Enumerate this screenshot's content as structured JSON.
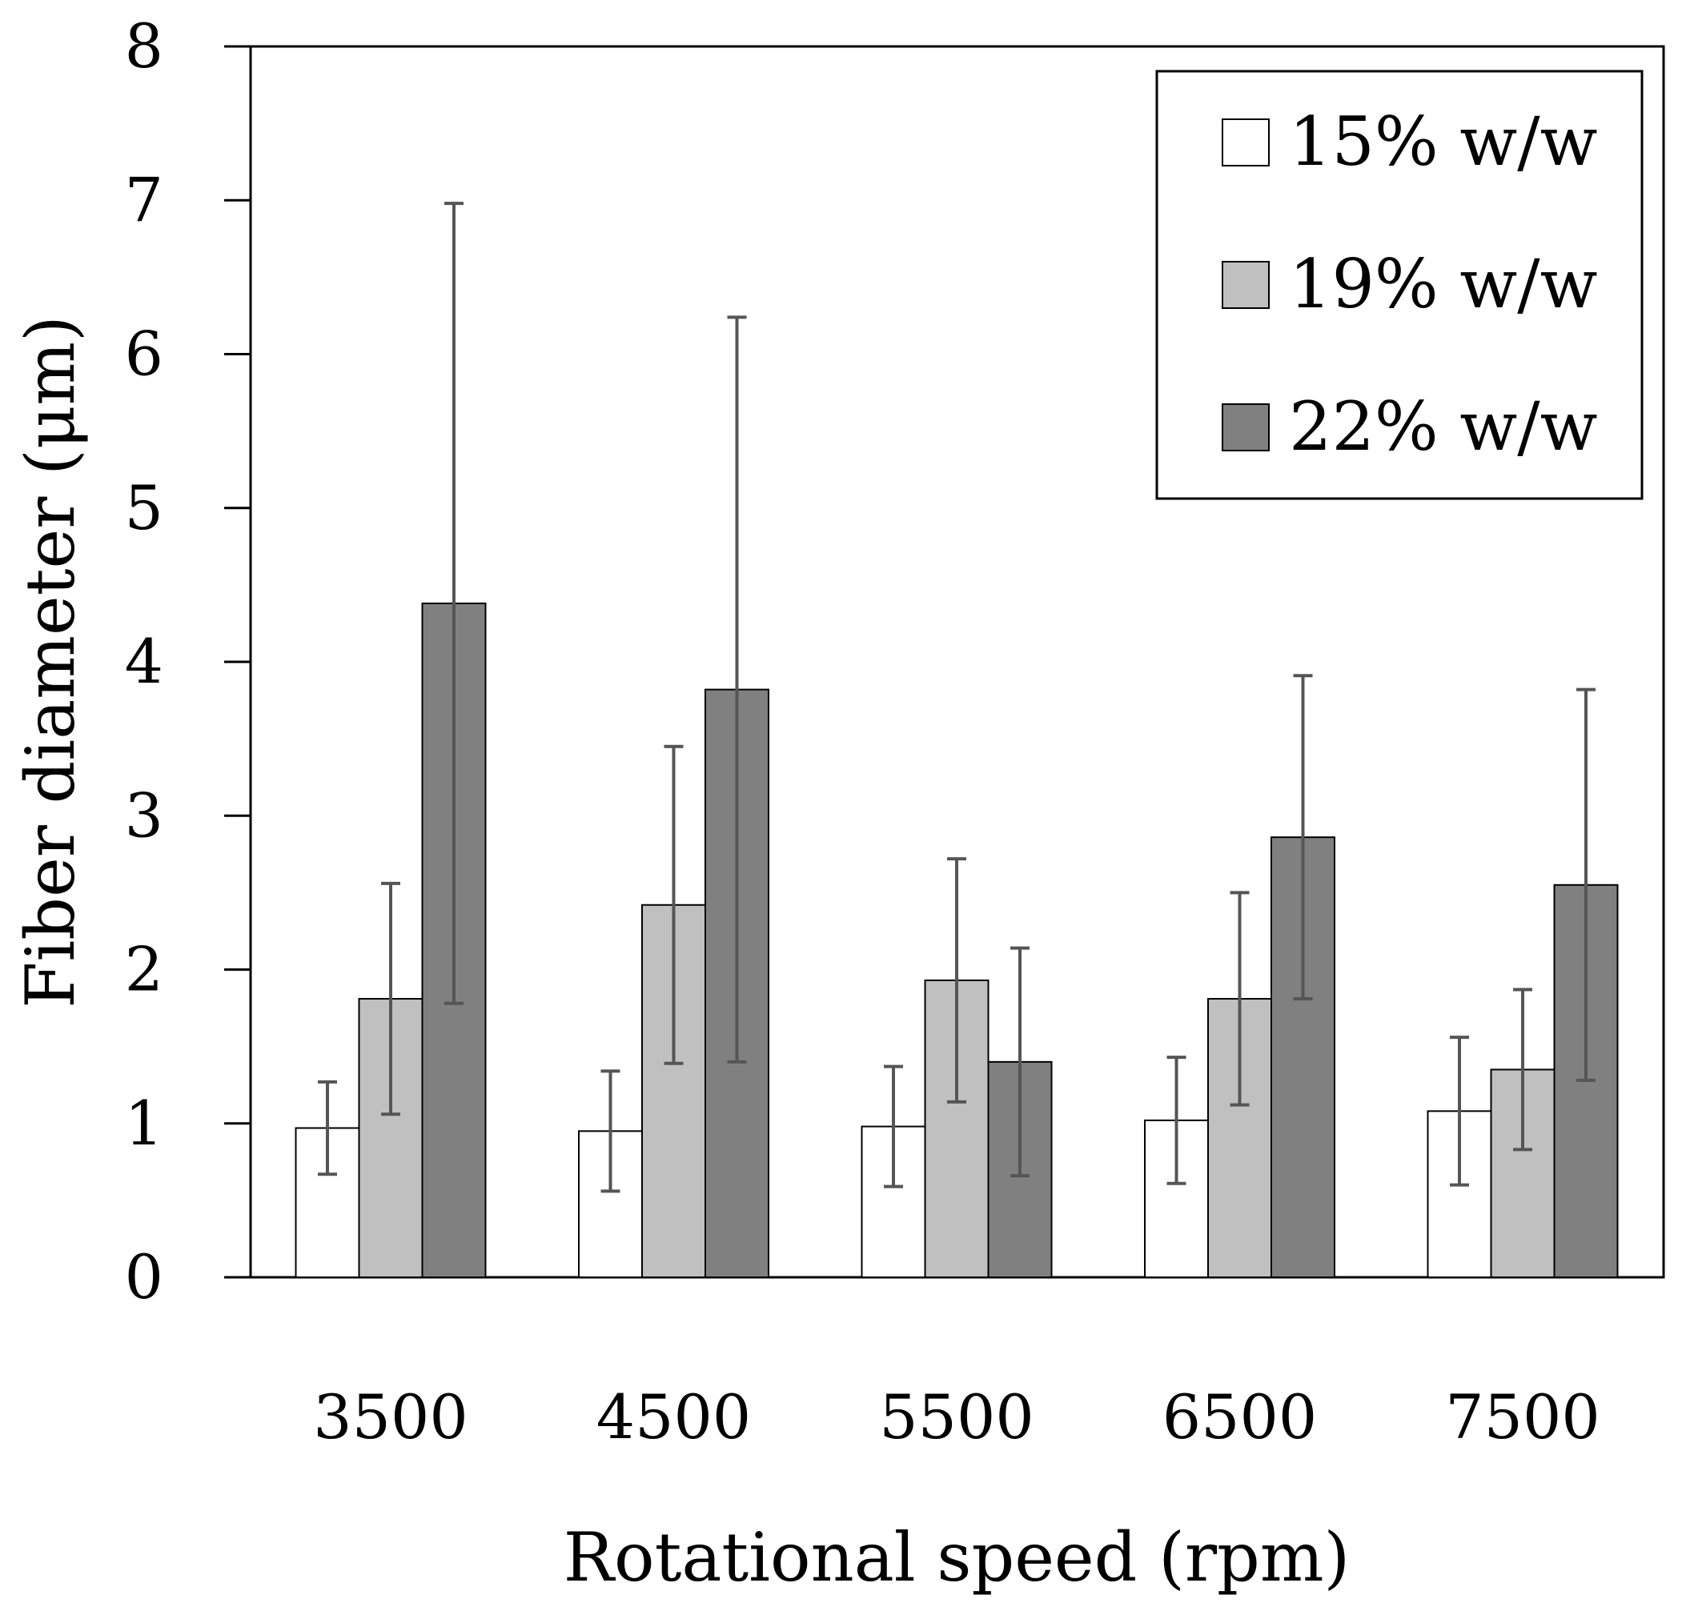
{
  "chart_data": {
    "type": "bar",
    "title": "",
    "xlabel": "Rotational speed (rpm)",
    "ylabel": "Fiber diameter (μm)",
    "ylim": [
      0,
      8
    ],
    "yticks": [
      "0",
      "1",
      "2",
      "3",
      "4",
      "5",
      "6",
      "7",
      "8"
    ],
    "categories": [
      "3500",
      "4500",
      "5500",
      "6500",
      "7500"
    ],
    "legend_position": "top-right",
    "series": [
      {
        "name": "15% w/w",
        "color": "#ffffff",
        "values": [
          0.97,
          0.95,
          0.98,
          1.02,
          1.08
        ],
        "error": [
          0.3,
          0.39,
          0.39,
          0.41,
          0.48
        ]
      },
      {
        "name": "19% w/w",
        "color": "#c0c0c0",
        "values": [
          1.81,
          2.42,
          1.93,
          1.81,
          1.35
        ],
        "error": [
          0.75,
          1.03,
          0.79,
          0.69,
          0.52
        ]
      },
      {
        "name": "22% w/w",
        "color": "#808080",
        "values": [
          4.38,
          3.82,
          1.4,
          2.86,
          2.55
        ],
        "error": [
          2.6,
          2.42,
          0.74,
          1.05,
          1.27
        ]
      }
    ]
  }
}
